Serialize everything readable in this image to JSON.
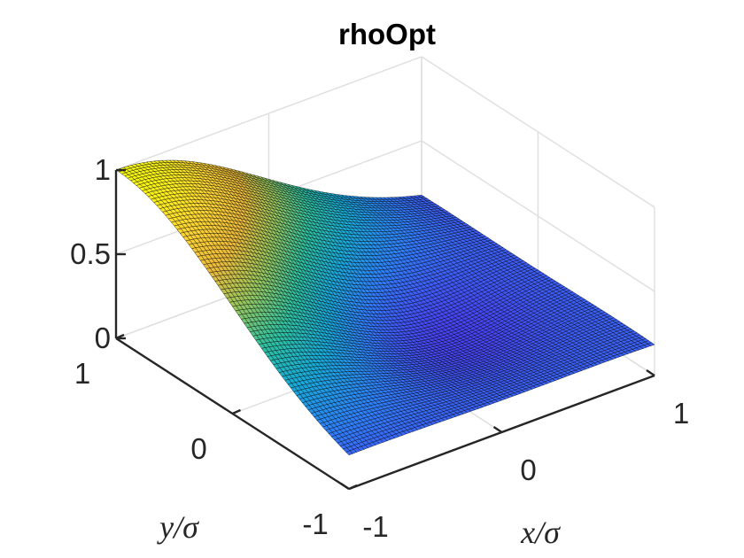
{
  "chart_data": {
    "type": "surface",
    "title": "rhoOpt",
    "xlabel": "x/σ",
    "ylabel": "y/σ",
    "zlabel": "",
    "xlim": [
      -1,
      1
    ],
    "ylim": [
      -1,
      1
    ],
    "zlim": [
      0,
      1
    ],
    "xticks": [
      -1,
      0,
      1
    ],
    "yticks": [
      -1,
      0,
      1
    ],
    "zticks": [
      0,
      0.5,
      1
    ],
    "xtick_labels": [
      "-1",
      "0",
      "1"
    ],
    "ytick_labels": [
      "-1",
      "0",
      "1"
    ],
    "ztick_labels": [
      "0",
      "0.5",
      "1"
    ],
    "grid": true,
    "colormap": "parula",
    "colormap_stops": [
      "#3e26a8",
      "#4743f2",
      "#2f7ef8",
      "#16a9d8",
      "#2ec09f",
      "#94c65f",
      "#ebb939",
      "#fdd731",
      "#f9fb0e"
    ],
    "edge_color": "#000000",
    "grid_size": 81,
    "surface_description": "peak of about 1.0 at x=-1, y=1; near 0 along x=1 and y=-1; small secondary bump at x=1, y=-1",
    "sample_points": [
      {
        "x": -1,
        "y": 1,
        "z": 1.0
      },
      {
        "x": -1,
        "y": -1,
        "z": 0.07
      },
      {
        "x": 1,
        "y": 1,
        "z": 0.07
      },
      {
        "x": 1,
        "y": -1,
        "z": 0.1
      },
      {
        "x": 0,
        "y": 0,
        "z": 0.18
      }
    ]
  }
}
